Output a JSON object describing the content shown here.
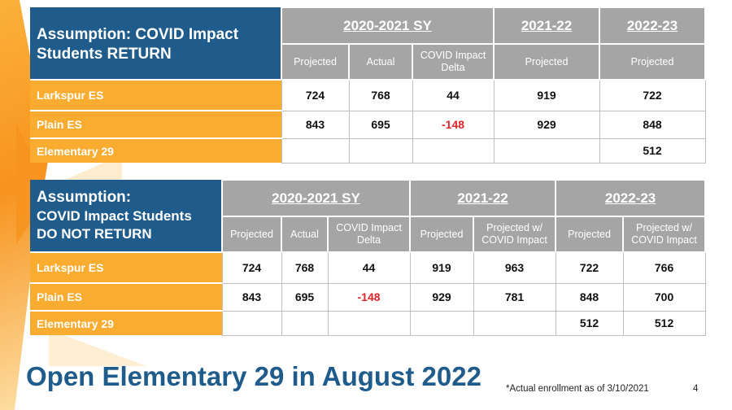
{
  "table1": {
    "title_line1": "Assumption: COVID Impact",
    "title_line2": "Students RETURN",
    "group_2020": "2020-2021 SY",
    "group_2122": "2021-22",
    "group_2223": "2022-23",
    "sub_projected": "Projected",
    "sub_actual": "Actual",
    "sub_delta_1": "COVID Impact",
    "sub_delta_2": "Delta",
    "sub_proj_2122": "Projected",
    "sub_proj_2223": "Projected",
    "rows": [
      {
        "label": "Larkspur ES",
        "projected": "724",
        "actual": "768",
        "delta": "44",
        "y2122": "919",
        "y2223": "722"
      },
      {
        "label": "Plain ES",
        "projected": "843",
        "actual": "695",
        "delta": "-148",
        "y2122": "929",
        "y2223": "848"
      },
      {
        "label": "Elementary 29",
        "projected": "",
        "actual": "",
        "delta": "",
        "y2122": "",
        "y2223": "512"
      }
    ]
  },
  "table2": {
    "title_line1": "Assumption:",
    "title_line2": "COVID Impact Students",
    "title_line3": "DO NOT RETURN",
    "group_2020": "2020-2021 SY",
    "group_2122": "2021-22",
    "group_2223": "2022-23",
    "sub_projected": "Projected",
    "sub_actual": "Actual",
    "sub_delta_1": "COVID Impact",
    "sub_delta_2": "Delta",
    "sub_2122_proj": "Projected",
    "sub_2122_pw_1": "Projected w/",
    "sub_2122_pw_2": "COVID Impact",
    "sub_2223_proj": "Projected",
    "sub_2223_pw_1": "Projected w/",
    "sub_2223_pw_2": "COVID Impact",
    "rows": [
      {
        "label": "Larkspur ES",
        "projected": "724",
        "actual": "768",
        "delta": "44",
        "p2122": "919",
        "pw2122": "963",
        "p2223": "722",
        "pw2223": "766"
      },
      {
        "label": "Plain ES",
        "projected": "843",
        "actual": "695",
        "delta": "-148",
        "p2122": "929",
        "pw2122": "781",
        "p2223": "848",
        "pw2223": "700"
      },
      {
        "label": "Elementary 29",
        "projected": "",
        "actual": "",
        "delta": "",
        "p2122": "",
        "pw2122": "",
        "p2223": "512",
        "pw2223": "512"
      }
    ]
  },
  "footer": {
    "title": "Open Elementary 29 in August 2022",
    "footnote": "*Actual enrollment as of 3/10/2021",
    "page_number": "4"
  },
  "colors": {
    "title_blue": "#1f5c8b",
    "header_gray": "#a5a5a5",
    "row_orange": "#f9ac2f",
    "negative_red": "#e0232b"
  }
}
